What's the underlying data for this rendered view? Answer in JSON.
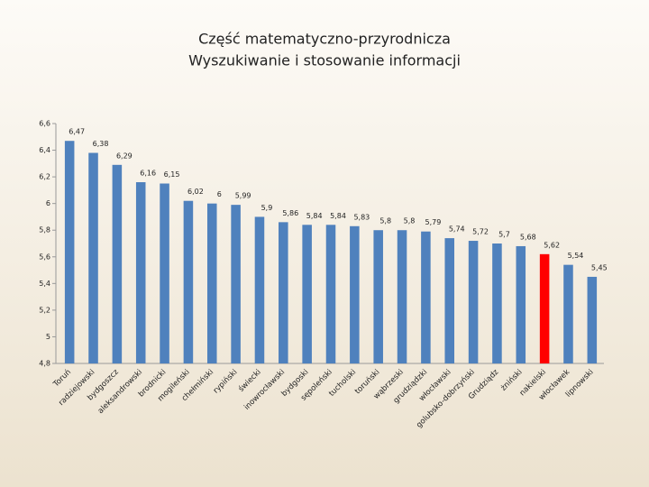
{
  "chart_data": {
    "type": "bar",
    "title": "Część matematyczno-przyrodnicza",
    "subtitle": "Wyszukiwanie i stosowanie informacji",
    "categories": [
      "Toruń",
      "radziejowski",
      "bydgoszcz",
      "aleksandrowski",
      "brodnicki",
      "mogileński",
      "chełmiński",
      "rypiński",
      "świecki",
      "inowrocławski",
      "bydgoski",
      "sępoleński",
      "tucholski",
      "toruński",
      "wąbrzeski",
      "grudziądzki",
      "włocławski",
      "golubsko-dobrzyński",
      "Grudziądz",
      "żniński",
      "nakielski",
      "włocławek",
      "lipnowski"
    ],
    "values": [
      6.47,
      6.38,
      6.29,
      6.16,
      6.15,
      6.02,
      6,
      5.99,
      5.9,
      5.86,
      5.84,
      5.84,
      5.83,
      5.8,
      5.8,
      5.79,
      5.74,
      5.72,
      5.7,
      5.68,
      5.62,
      5.54,
      5.45
    ],
    "value_labels": [
      "6,47",
      "6,38",
      "6,29",
      "6,16",
      "6,15",
      "6,02",
      "6",
      "5,99",
      "5,9",
      "5,86",
      "5,84",
      "5,84",
      "5,83",
      "5,8",
      "5,8",
      "5,79",
      "5,74",
      "5,72",
      "5,7",
      "5,68",
      "5,62",
      "5,54",
      "5,45"
    ],
    "colors": [
      "#4f81bd",
      "#4f81bd",
      "#4f81bd",
      "#4f81bd",
      "#4f81bd",
      "#4f81bd",
      "#4f81bd",
      "#4f81bd",
      "#4f81bd",
      "#4f81bd",
      "#4f81bd",
      "#4f81bd",
      "#4f81bd",
      "#4f81bd",
      "#4f81bd",
      "#4f81bd",
      "#4f81bd",
      "#4f81bd",
      "#4f81bd",
      "#4f81bd",
      "#ff0000",
      "#4f81bd",
      "#4f81bd"
    ],
    "ylim": [
      4.8,
      6.6
    ],
    "yticks": [
      {
        "value": 4.8,
        "label": "4,8"
      },
      5,
      {
        "value": 5.2,
        "label": "5,2"
      },
      {
        "value": 5.4,
        "label": "5,4"
      },
      {
        "value": 5.6,
        "label": "5,6"
      },
      {
        "value": 5.8,
        "label": "5,8"
      },
      6,
      {
        "value": 6.2,
        "label": "6,2"
      },
      {
        "value": 6.4,
        "label": "6,4"
      },
      {
        "value": 6.6,
        "label": "6,6"
      }
    ],
    "grid": false
  }
}
